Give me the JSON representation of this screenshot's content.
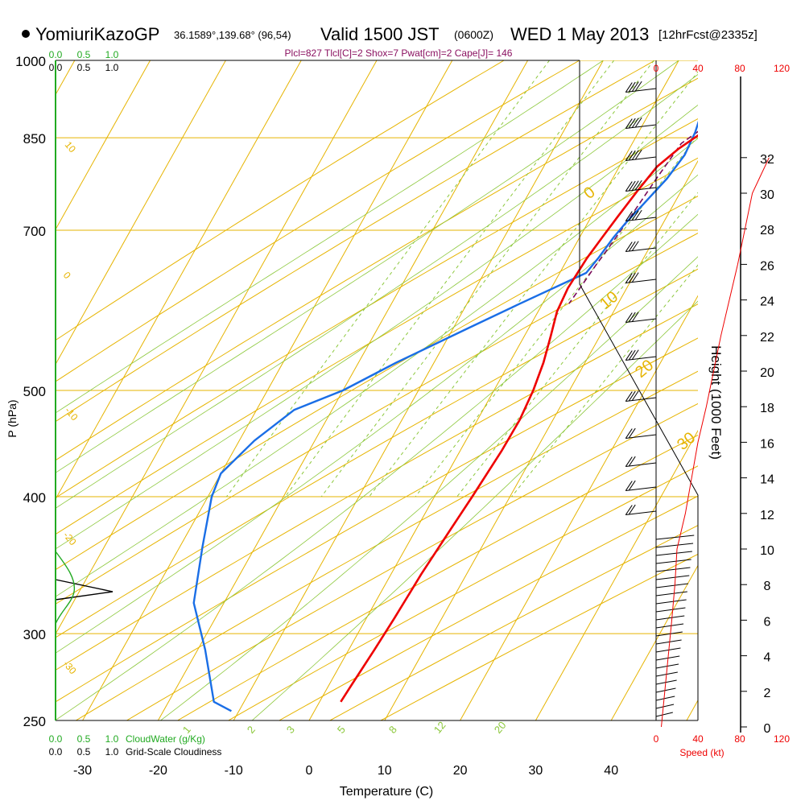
{
  "header": {
    "station": "YomiuriKazoGP",
    "coords": "36.1589°,139.68° (96,54)",
    "valid": "Valid 1500 JST",
    "zulu": "(0600Z)",
    "date": "WED 1 May 2013",
    "forecast": "[12hrFcst@2335z]"
  },
  "indices": "Plcl=827 Tlcl[C]=2 Shox=7 Pwat[cm]=2 Cape[J]= 146",
  "colors": {
    "isotherm": "#e6b400",
    "mixing": "#8cc83c",
    "temp": "#ee0000",
    "dew": "#1a6ee6",
    "parcel": "#7a0a5a",
    "cloud": "#22aa22",
    "wind_scale": "#ee0000"
  },
  "chart_data": {
    "type": "line",
    "title": "",
    "xlabel": "Temperature (C)",
    "ylabel": "P (hPa)",
    "y2label": "Height (1000 Feet)",
    "x_ticks": [
      -30,
      -20,
      -10,
      0,
      10,
      20,
      30,
      40
    ],
    "y_ticks": [
      250,
      300,
      400,
      500,
      700,
      850,
      1000
    ],
    "height_ticks": [
      0,
      2,
      4,
      6,
      8,
      10,
      12,
      14,
      16,
      18,
      20,
      22,
      24,
      26,
      28,
      30,
      32
    ],
    "speed_ticks": [
      0,
      40,
      80,
      120
    ],
    "speed_label": "Speed (kt)",
    "cloud_ticks": [
      "0.0",
      "0.5",
      "1.0"
    ],
    "cloud_water_label": "CloudWater (g/Kg)",
    "cloudiness_label": "Grid-Scale Cloudiness",
    "dry_adiabat_labels": [
      "10",
      "0",
      "-10",
      "-20",
      "-30"
    ],
    "isotherm_labels": [
      "0",
      "10",
      "20",
      "30"
    ],
    "mixing_ratio_labels": [
      "1",
      "2",
      "3",
      "5",
      "8",
      "12",
      "20"
    ],
    "series": [
      {
        "name": "Temperature",
        "points": [
          [
            19.2,
            990
          ],
          [
            17,
            970
          ],
          [
            14.5,
            940
          ],
          [
            11.5,
            900
          ],
          [
            8.5,
            860
          ],
          [
            6.5,
            830
          ],
          [
            5,
            800
          ],
          [
            4.2,
            760
          ],
          [
            3.5,
            720
          ],
          [
            3,
            690
          ],
          [
            2.5,
            660
          ],
          [
            2.2,
            620
          ],
          [
            2.5,
            590
          ],
          [
            3.5,
            560
          ],
          [
            4.5,
            530
          ],
          [
            5.2,
            500
          ],
          [
            5.6,
            470
          ],
          [
            5.5,
            440
          ],
          [
            5,
            400
          ],
          [
            4.5,
            370
          ],
          [
            4,
            340
          ],
          [
            3.7,
            310
          ],
          [
            3.4,
            290
          ],
          [
            3,
            270
          ],
          [
            2.8,
            260
          ]
        ]
      },
      {
        "name": "Dew point",
        "points": [
          [
            5.8,
            990
          ],
          [
            5.8,
            960
          ],
          [
            6.5,
            920
          ],
          [
            7.5,
            860
          ],
          [
            7.8,
            820
          ],
          [
            7.2,
            780
          ],
          [
            6,
            740
          ],
          [
            5,
            710
          ],
          [
            4.5,
            690
          ],
          [
            4,
            660
          ],
          [
            3.5,
            640
          ],
          [
            -3,
            600
          ],
          [
            -8,
            570
          ],
          [
            -15,
            530
          ],
          [
            -20,
            500
          ],
          [
            -25,
            480
          ],
          [
            -28,
            450
          ],
          [
            -30,
            420
          ],
          [
            -29.5,
            400
          ],
          [
            -27,
            360
          ],
          [
            -24,
            320
          ],
          [
            -19,
            290
          ],
          [
            -14,
            260
          ],
          [
            -11,
            255
          ]
        ]
      },
      {
        "name": "Parcel",
        "points": [
          [
            18.2,
            990
          ],
          [
            15,
            960
          ],
          [
            12,
            920
          ],
          [
            9,
            880
          ],
          [
            6.5,
            840
          ],
          [
            5.8,
            780
          ],
          [
            5.2,
            720
          ],
          [
            4.7,
            680
          ],
          [
            4.2,
            650
          ],
          [
            3.8,
            620
          ],
          [
            3.5,
            600
          ]
        ]
      },
      {
        "name": "Surface dew point",
        "points": [
          [
            7,
            990
          ]
        ]
      },
      {
        "name": "Surface temperature",
        "points": [
          [
            19.2,
            990
          ]
        ]
      }
    ],
    "wind_speed_profile": [
      [
        5,
        0
      ],
      [
        10,
        3
      ],
      [
        15,
        6
      ],
      [
        18,
        8
      ],
      [
        20,
        10
      ],
      [
        28,
        12
      ],
      [
        34,
        14
      ],
      [
        40,
        16
      ],
      [
        48,
        18
      ],
      [
        55,
        20
      ],
      [
        62,
        22
      ],
      [
        70,
        24
      ],
      [
        78,
        26
      ],
      [
        85,
        28
      ],
      [
        92,
        30
      ],
      [
        100,
        31
      ],
      [
        108,
        32
      ]
    ],
    "cloudiness_profile": [
      [
        0,
        15000
      ],
      [
        0,
        9000
      ],
      [
        0.3,
        8000
      ],
      [
        0.75,
        7600
      ],
      [
        0.3,
        7200
      ],
      [
        0,
        6200
      ],
      [
        0,
        0
      ]
    ],
    "cloud_water_profile": [
      [
        0,
        15000
      ],
      [
        0,
        9500
      ],
      [
        0.1,
        8500
      ],
      [
        0.2,
        7700
      ],
      [
        0.1,
        7000
      ],
      [
        0,
        6000
      ],
      [
        0,
        0
      ]
    ],
    "xlim": [
      -35,
      46
    ],
    "ylim": [
      1000,
      250
    ]
  }
}
